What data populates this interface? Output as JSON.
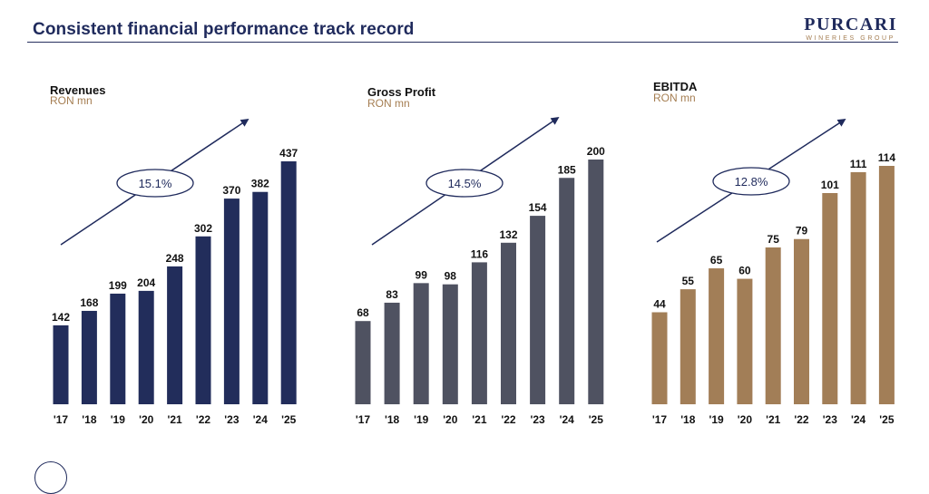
{
  "header": {
    "title": "Consistent financial performance track record",
    "logo_main": "PURCARI",
    "logo_sub": "WINERIES GROUP"
  },
  "colors": {
    "revenues": "#222d5b",
    "gross_profit": "#4f5261",
    "ebitda": "#a27e57",
    "accent": "#1f2a5c"
  },
  "chart_data": [
    {
      "type": "bar",
      "title": "Revenues",
      "subtitle": "RON mn",
      "categories": [
        "'17",
        "'18",
        "'19",
        "'20",
        "'21",
        "'22",
        "'23",
        "'24",
        "'25"
      ],
      "values": [
        142,
        168,
        199,
        204,
        248,
        302,
        370,
        382,
        437
      ],
      "annotation": "15.1%",
      "ylim": [
        0,
        450
      ]
    },
    {
      "type": "bar",
      "title": "Gross Profit",
      "subtitle": "RON mn",
      "categories": [
        "'17",
        "'18",
        "'19",
        "'20",
        "'21",
        "'22",
        "'23",
        "'24",
        "'25"
      ],
      "values": [
        68,
        83,
        99,
        98,
        116,
        132,
        154,
        185,
        200
      ],
      "annotation": "14.5%",
      "ylim": [
        0,
        205
      ]
    },
    {
      "type": "bar",
      "title": "EBITDA",
      "subtitle": "RON mn",
      "categories": [
        "'17",
        "'18",
        "'19",
        "'20",
        "'21",
        "'22",
        "'23",
        "'24",
        "'25"
      ],
      "values": [
        44,
        55,
        65,
        60,
        75,
        79,
        101,
        111,
        114
      ],
      "annotation": "12.8%",
      "ylim": [
        0,
        117
      ]
    }
  ]
}
